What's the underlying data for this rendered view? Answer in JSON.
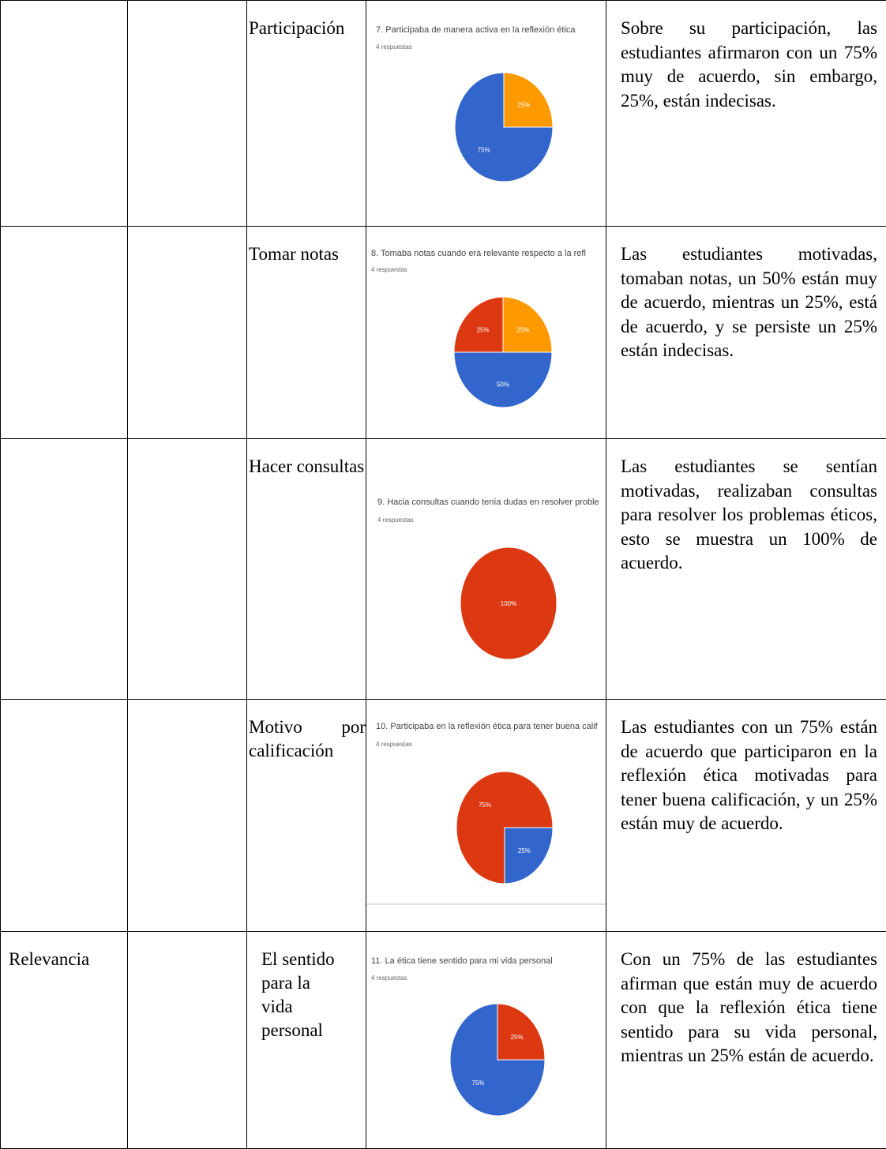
{
  "colors": {
    "blue": "#3366cc",
    "red": "#dc3912",
    "orange": "#ff9900"
  },
  "rows": [
    {
      "category": "",
      "label": "Participación",
      "question": "7. Participaba  de manera activa en la reflexión ética",
      "responses": "4 respuestas",
      "description": "Sobre su participación, las estudiantes afirmaron con un 75% muy de acuerdo, sin embargo, 25%, están indecisas.",
      "chart_data": {
        "type": "pie",
        "values": [
          25,
          75
        ],
        "labels": [
          "25%",
          "75%"
        ],
        "colors": [
          "#ff9900",
          "#3366cc"
        ]
      }
    },
    {
      "category": "",
      "label": "Tomar notas",
      "question": "8.   Tomaba  notas cuando era relevante  respecto a la refl",
      "responses": "4 respuestas",
      "description": "Las estudiantes motivadas, tomaban notas, un 50% están muy de acuerdo, mientras un 25%, está de acuerdo, y se persiste un 25% están indecisas.",
      "chart_data": {
        "type": "pie",
        "values": [
          25,
          50,
          25
        ],
        "labels": [
          "25%",
          "50%",
          "25%"
        ],
        "colors": [
          "#ff9900",
          "#3366cc",
          "#dc3912"
        ]
      }
    },
    {
      "category": "",
      "label": "Hacer consultas",
      "question": "9. Hacia  consultas cuando tenía dudas en resolver proble",
      "responses": "4 respuestas",
      "description": "Las estudiantes se sentían motivadas, realizaban consultas para resolver los problemas éticos, esto se muestra un 100%  de acuerdo.",
      "chart_data": {
        "type": "pie",
        "values": [
          100
        ],
        "labels": [
          "100%"
        ],
        "colors": [
          "#dc3912"
        ]
      }
    },
    {
      "category": "",
      "label": "Motivo por calificación",
      "question": "10. Participaba  en la reflexión ética para tener buena calif",
      "responses": "4 respuestas",
      "description": "Las estudiantes con un 75% están de acuerdo que participaron en la reflexión ética motivadas para tener buena calificación, y un 25% están muy de acuerdo.",
      "chart_data": {
        "type": "pie",
        "values": [
          25,
          75
        ],
        "labels": [
          "25%",
          "75%"
        ],
        "colors": [
          "#3366cc",
          "#dc3912"
        ]
      }
    },
    {
      "category": "Relevancia",
      "label": "El sentido para la vida personal",
      "question": "11.  La ética tiene sentido para mi vida personal",
      "responses": "4 respuestas",
      "description": "Con un 75% de las estudiantes afirman que están muy de acuerdo con que la reflexión ética tiene sentido para su vida personal, mientras un 25% están de acuerdo.",
      "chart_data": {
        "type": "pie",
        "values": [
          25,
          75
        ],
        "labels": [
          "25%",
          "75%"
        ],
        "colors": [
          "#dc3912",
          "#3366cc"
        ]
      }
    }
  ]
}
